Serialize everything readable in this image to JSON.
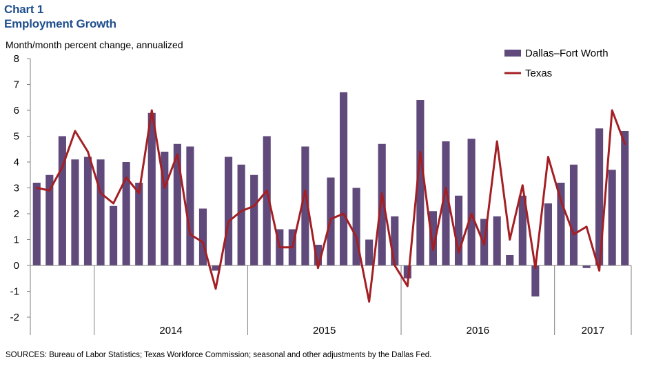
{
  "header": {
    "chart_number": "Chart 1",
    "title": "Employment Growth",
    "ylabel": "Month/month  percent change, annualized"
  },
  "footer": {
    "source": "SOURCES: Bureau of  Labor Statistics; Texas Workforce Commission; seasonal and other adjustments by the Dallas Fed."
  },
  "chart_data": {
    "type": "bar",
    "ylabel": "Month/month  percent change, annualized",
    "ylim": [
      -2,
      8
    ],
    "yticks": [
      -2,
      -1,
      0,
      1,
      2,
      3,
      4,
      5,
      6,
      7,
      8
    ],
    "x_year_labels": [
      "2014",
      "2015",
      "2016",
      "2017"
    ],
    "x_start": "2013-08",
    "x_end": "2017-05",
    "legend_position": "top-right",
    "grid": false,
    "series": [
      {
        "name": "Dallas–Fort Worth",
        "type": "bar",
        "color": "#604a7b",
        "values": [
          3.2,
          3.5,
          5.0,
          4.1,
          4.2,
          4.1,
          2.3,
          4.0,
          3.2,
          5.9,
          4.4,
          4.7,
          4.6,
          2.2,
          -0.2,
          4.2,
          3.9,
          3.5,
          5.0,
          1.4,
          1.4,
          4.6,
          0.8,
          3.4,
          6.7,
          3.0,
          1.0,
          4.7,
          1.9,
          -0.5,
          6.4,
          2.1,
          4.8,
          2.7,
          4.9,
          1.8,
          1.9,
          0.4,
          2.7,
          -1.2,
          2.4,
          3.2,
          3.9,
          -0.1,
          5.3,
          3.7,
          5.2
        ]
      },
      {
        "name": "Texas",
        "type": "line",
        "color": "#a31f24",
        "values": [
          3.0,
          2.9,
          3.8,
          5.2,
          4.4,
          2.8,
          2.4,
          3.4,
          2.8,
          6.0,
          3.0,
          4.3,
          1.2,
          0.9,
          -0.9,
          1.7,
          2.1,
          2.3,
          2.9,
          0.7,
          0.7,
          2.9,
          -0.1,
          1.8,
          2.0,
          1.1,
          -1.4,
          2.8,
          0.0,
          -0.8,
          4.4,
          0.6,
          3.0,
          0.5,
          2.0,
          0.8,
          4.8,
          1.0,
          3.1,
          -0.1,
          4.2,
          2.5,
          1.2,
          1.5,
          -0.2,
          6.0,
          4.7
        ]
      }
    ]
  }
}
